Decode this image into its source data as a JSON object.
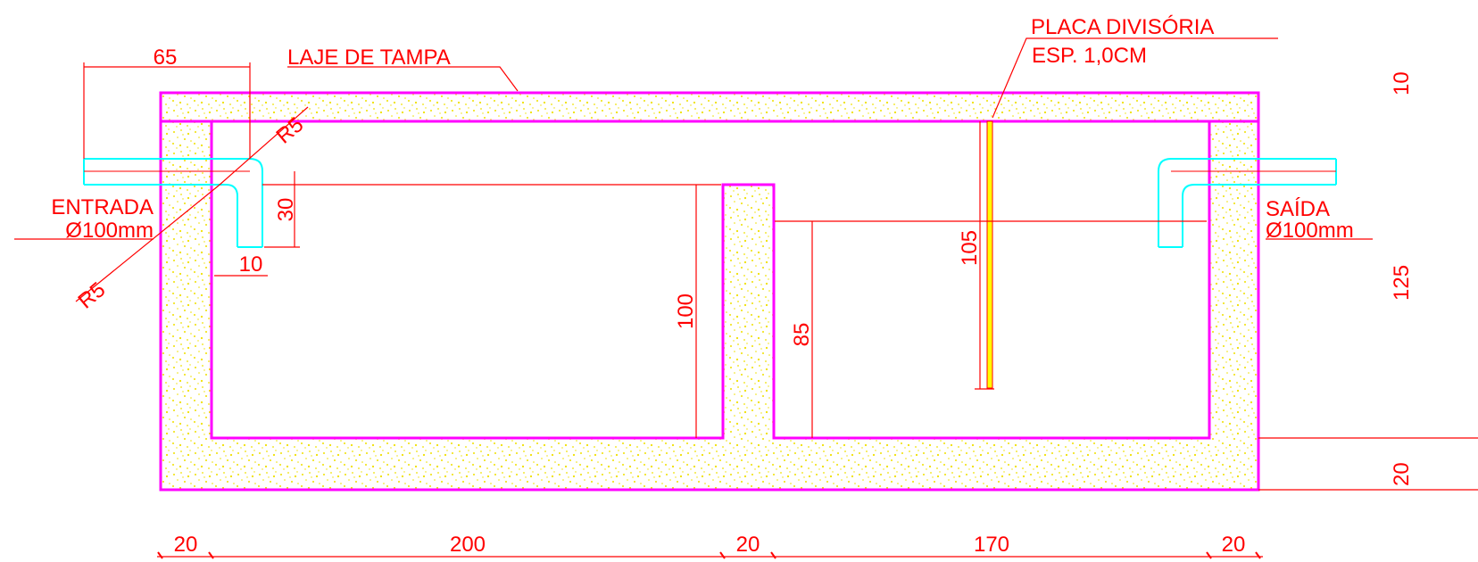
{
  "labels": {
    "lid": "LAJE DE TAMPA",
    "divider_line1": "PLACA DIVISÓRIA",
    "divider_line2": "ESP. 1,0CM",
    "inlet_line1": "ENTRADA",
    "inlet_line2": "Ø100mm",
    "outlet_line1": "SAÍDA",
    "outlet_line2": "Ø100mm"
  },
  "dimensions": {
    "inlet_pipe_length": "65",
    "inlet_radius_top": "R5",
    "inlet_radius_bottom": "R5",
    "inlet_drop": "30",
    "inlet_pipe_width": "10",
    "chamber1_height": "100",
    "chamber2_height": "85",
    "divider_height": "105",
    "right_top": "10",
    "right_mid": "125",
    "right_bottom": "20",
    "bottom_wall_left": "20",
    "bottom_chamber1": "200",
    "bottom_wall_mid": "20",
    "bottom_chamber2": "170",
    "bottom_wall_right": "20"
  },
  "colors": {
    "outline": "#ff00ff",
    "dimension": "#ff0000",
    "pipe": "#00ffff",
    "concrete_fill": "#ffff00",
    "divider_plate": "#ffff00"
  }
}
